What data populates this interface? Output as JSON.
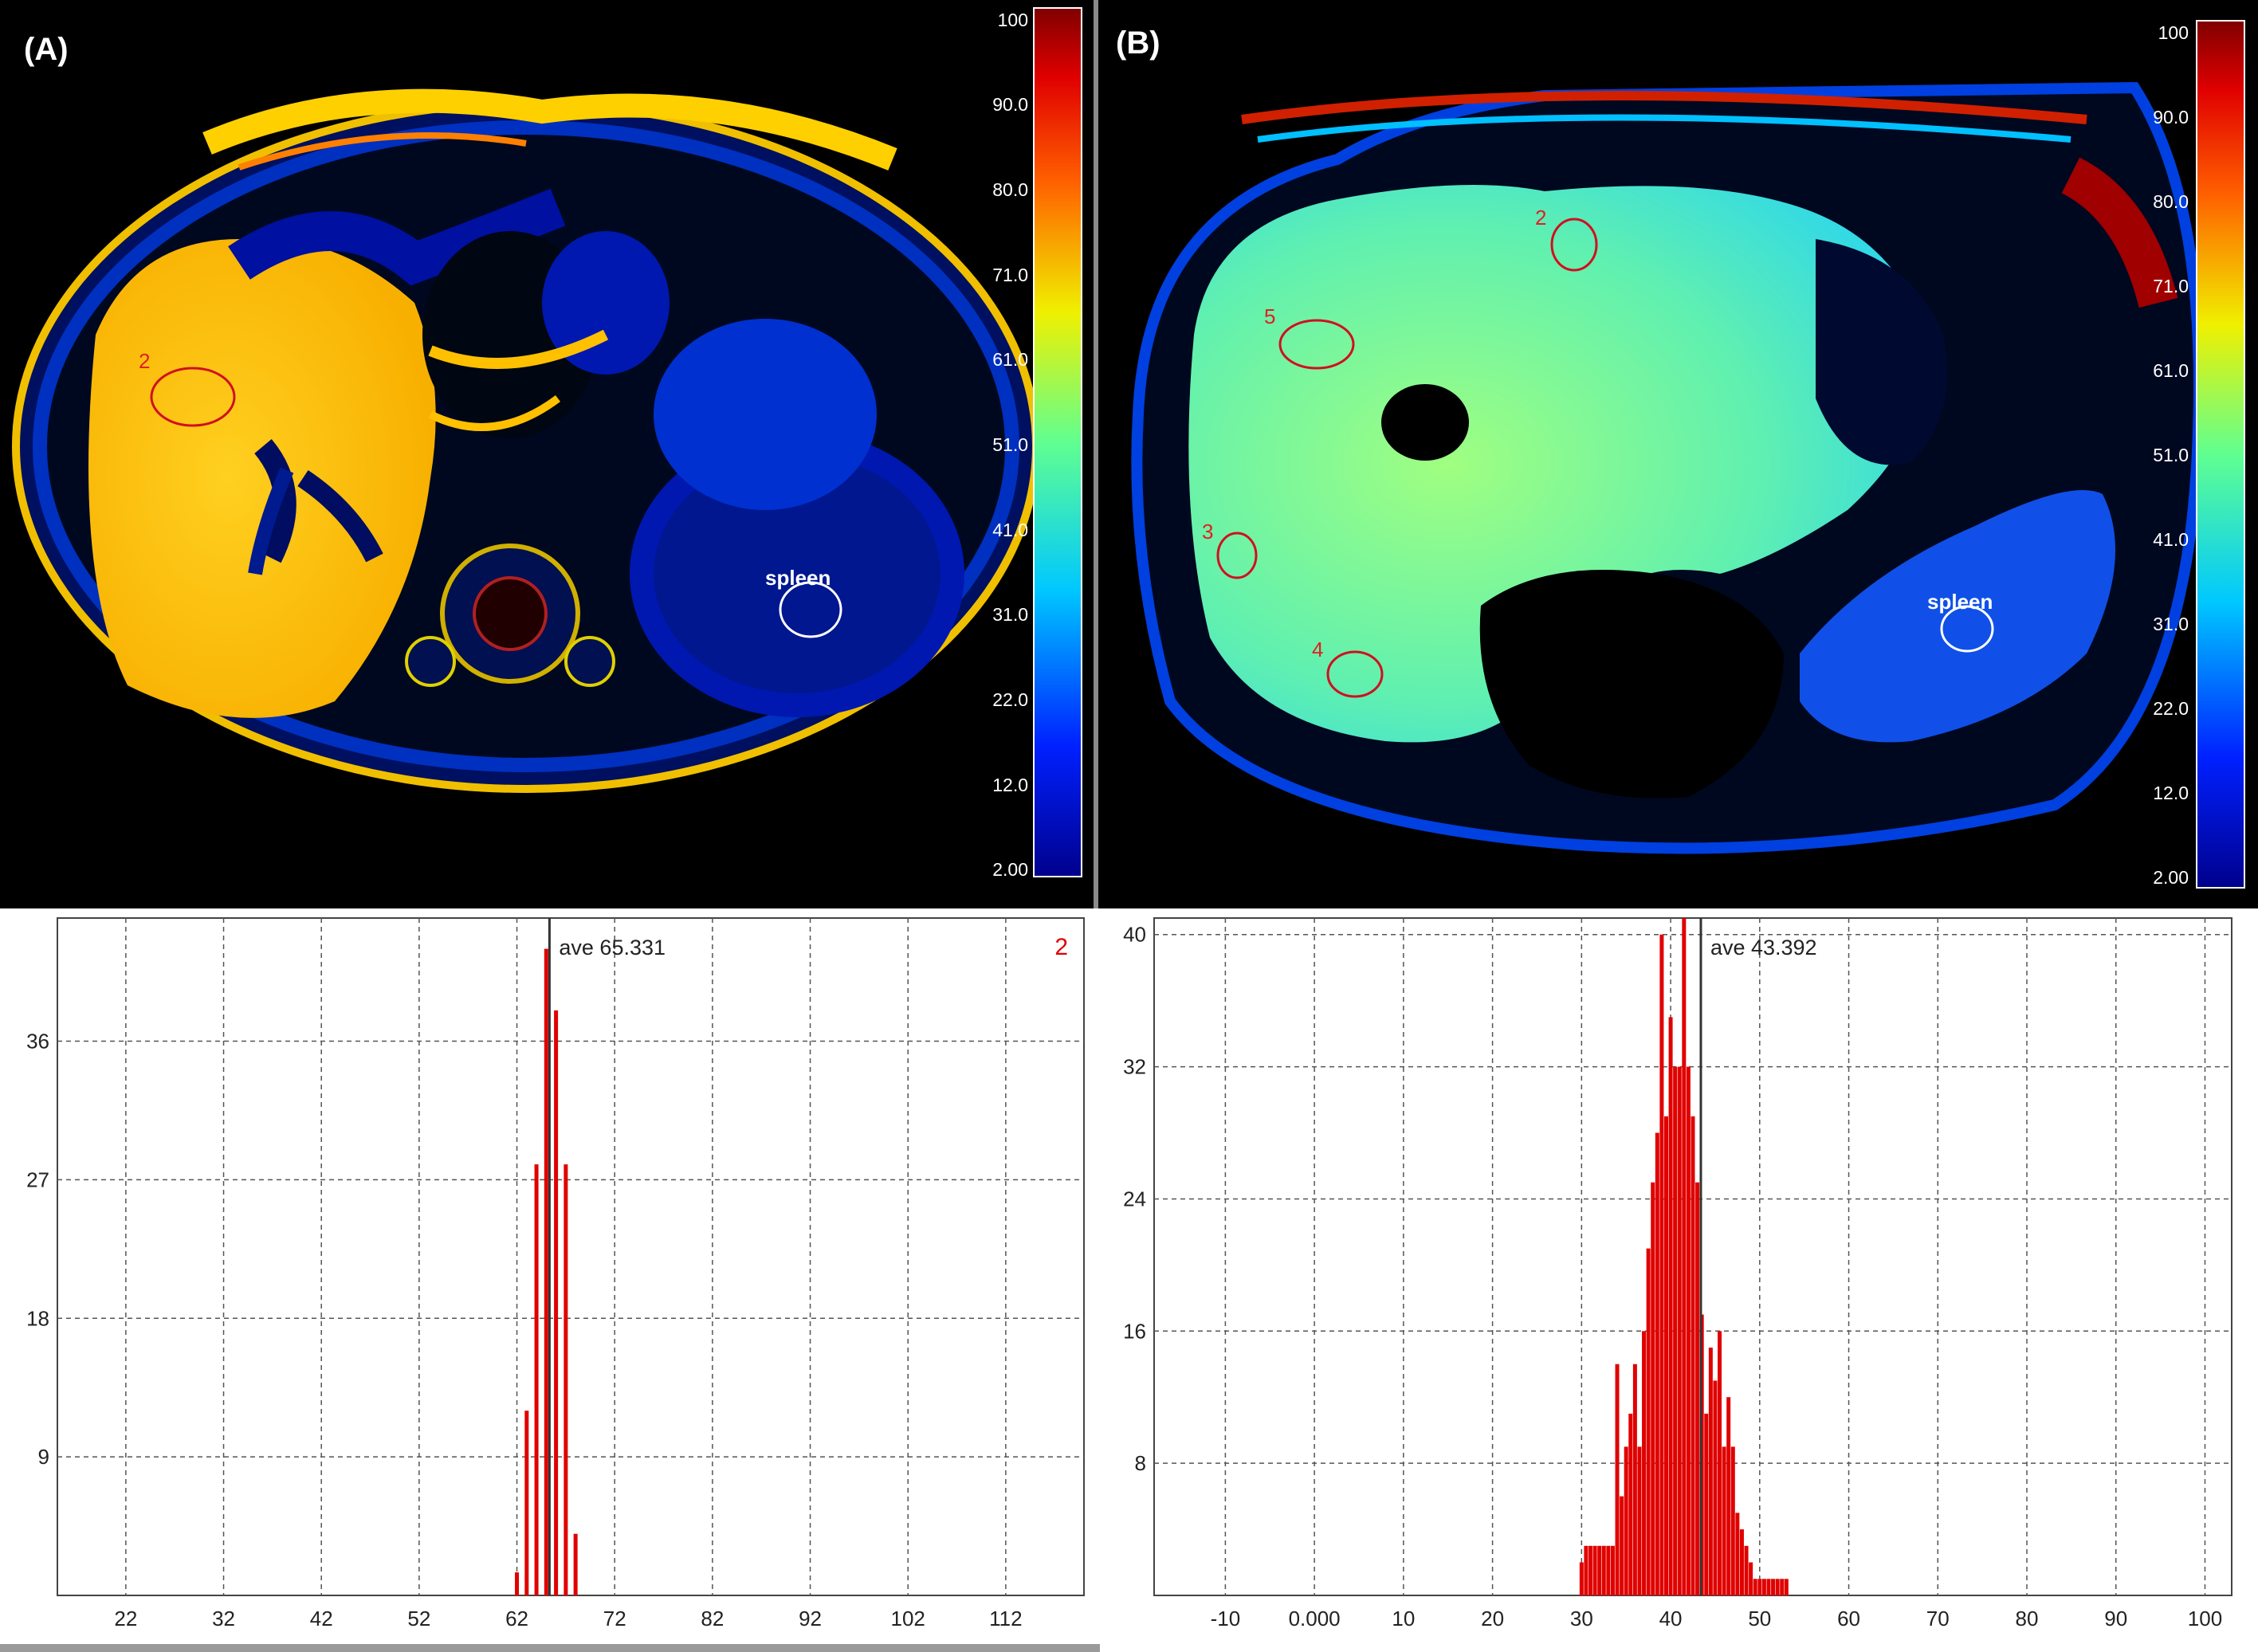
{
  "panels": [
    {
      "id": "A",
      "label": "(A)",
      "colorbar_ticks": [
        "100",
        "90.0",
        "80.0",
        "71.0",
        "61.0",
        "51.0",
        "41.0",
        "31.0",
        "22.0",
        "12.0",
        "2.00"
      ],
      "roi_labels": [
        "2"
      ],
      "spleen_label": "spleen"
    },
    {
      "id": "B",
      "label": "(B)",
      "colorbar_ticks": [
        "100",
        "90.0",
        "80.0",
        "71.0",
        "61.0",
        "51.0",
        "41.0",
        "31.0",
        "22.0",
        "12.0",
        "2.00"
      ],
      "roi_labels": [
        "2",
        "5",
        "3",
        "4"
      ],
      "spleen_label": "spleen"
    }
  ],
  "colors": {
    "histogram_bar": "#e00000",
    "mean_line": "#333333",
    "grid": "#555555",
    "image_background": "#000000"
  },
  "chart_data": [
    {
      "type": "bar",
      "title": "",
      "xlabel": "",
      "ylabel": "",
      "annotation": "ave 65.331",
      "series_label": "2",
      "mean": 65.331,
      "xlim": [
        15,
        120
      ],
      "ylim": [
        0,
        44
      ],
      "x_ticks": [
        "22",
        "32",
        "42",
        "52",
        "62",
        "72",
        "82",
        "92",
        "102",
        "112"
      ],
      "y_ticks": [
        "9",
        "18",
        "27",
        "36"
      ],
      "grid": true,
      "x": [
        62,
        63,
        64,
        65,
        66,
        67,
        68
      ],
      "values": [
        1.5,
        12,
        28,
        42,
        38,
        28,
        4
      ]
    },
    {
      "type": "bar",
      "title": "",
      "xlabel": "",
      "ylabel": "",
      "annotation": "ave 43.392",
      "series_label": "",
      "mean": 43.392,
      "xlim": [
        -18,
        103
      ],
      "ylim": [
        0,
        41
      ],
      "x_ticks": [
        "-10",
        "0.000",
        "10",
        "20",
        "30",
        "40",
        "50",
        "60",
        "70",
        "80",
        "90",
        "100"
      ],
      "y_ticks": [
        "8",
        "16",
        "24",
        "32",
        "40"
      ],
      "grid": true,
      "x": [
        30,
        30.5,
        31,
        31.5,
        32,
        32.5,
        33,
        33.5,
        34,
        34.5,
        35,
        35.5,
        36,
        36.5,
        37,
        37.5,
        38,
        38.5,
        39,
        39.5,
        40,
        40.5,
        41,
        41.5,
        42,
        42.5,
        43,
        43.5,
        44,
        44.5,
        45,
        45.5,
        46,
        46.5,
        47,
        47.5,
        48,
        48.5,
        49,
        49.5,
        50,
        50.5,
        51,
        51.5,
        52,
        52.5,
        53
      ],
      "values": [
        2,
        3,
        3,
        3,
        3,
        3,
        3,
        3,
        14,
        6,
        9,
        11,
        14,
        9,
        16,
        21,
        25,
        28,
        40,
        29,
        35,
        32,
        32,
        41,
        32,
        29,
        25,
        17,
        11,
        15,
        13,
        16,
        9,
        12,
        9,
        5,
        4,
        3,
        2,
        1,
        1,
        1,
        1,
        1,
        1,
        1,
        1
      ]
    }
  ]
}
